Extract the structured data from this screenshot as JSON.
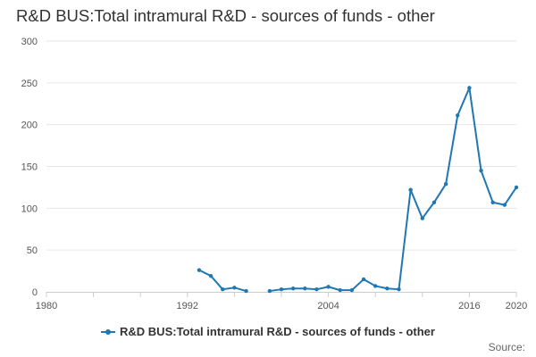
{
  "colors": {
    "series": "#1f77b4",
    "grid": "#e6e6e6",
    "axis": "#cccccc"
  },
  "source_label": "Source:",
  "chart_data": {
    "type": "line",
    "title": "R&D BUS:Total intramural R&D - sources of funds - other",
    "xlabel": "",
    "ylabel": "",
    "xlim": [
      1980,
      2020
    ],
    "ylim": [
      0,
      300
    ],
    "x_ticks": [
      1980,
      1992,
      2004,
      2016,
      2020
    ],
    "y_ticks": [
      0,
      50,
      100,
      150,
      200,
      250,
      300
    ],
    "grid": true,
    "legend_position": "bottom",
    "series": [
      {
        "name": "R&D BUS:Total intramural R&D - sources of funds - other",
        "color": "#1f77b4",
        "x": [
          1993,
          1994,
          1995,
          1996,
          1997,
          1998,
          1999,
          2000,
          2001,
          2002,
          2003,
          2004,
          2005,
          2006,
          2007,
          2008,
          2009,
          2010,
          2011,
          2012,
          2013,
          2014,
          2015,
          2016,
          2017,
          2018,
          2019,
          2020
        ],
        "values": [
          26,
          19,
          3,
          5,
          1,
          null,
          1,
          3,
          4,
          4,
          3,
          6,
          2,
          2,
          15,
          7,
          4,
          3,
          122,
          88,
          107,
          129,
          211,
          244,
          145,
          107,
          104,
          125
        ]
      }
    ]
  }
}
